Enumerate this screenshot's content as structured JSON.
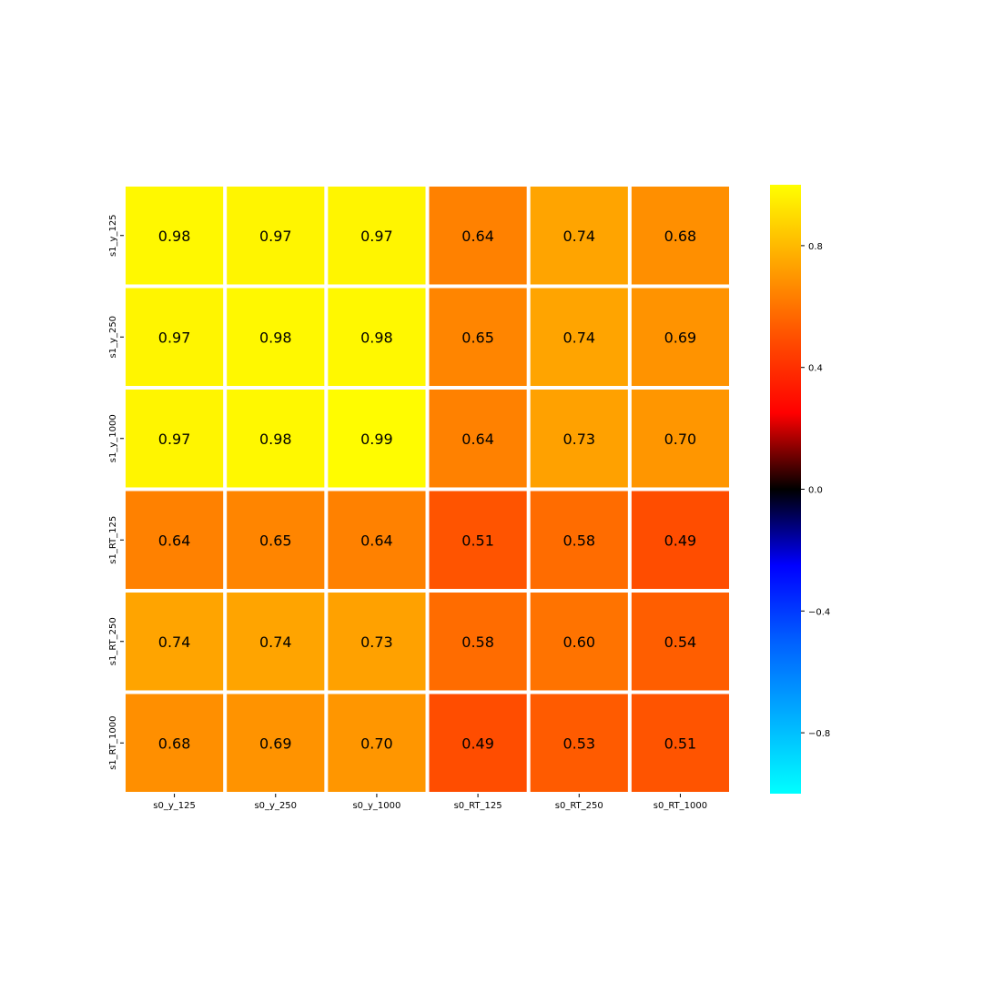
{
  "chart_data": {
    "type": "heatmap",
    "title": "",
    "xlabel": "",
    "ylabel": "",
    "x_categories": [
      "s0_y_125",
      "s0_y_250",
      "s0_y_1000",
      "s0_RT_125",
      "s0_RT_250",
      "s0_RT_1000"
    ],
    "y_categories": [
      "s1_y_125",
      "s1_y_250",
      "s1_y_1000",
      "s1_RT_125",
      "s1_RT_250",
      "s1_RT_1000"
    ],
    "values": [
      [
        0.98,
        0.97,
        0.97,
        0.64,
        0.74,
        0.68
      ],
      [
        0.97,
        0.98,
        0.98,
        0.65,
        0.74,
        0.69
      ],
      [
        0.97,
        0.98,
        0.99,
        0.64,
        0.73,
        0.7
      ],
      [
        0.64,
        0.65,
        0.64,
        0.51,
        0.58,
        0.49
      ],
      [
        0.74,
        0.74,
        0.73,
        0.58,
        0.6,
        0.54
      ],
      [
        0.68,
        0.69,
        0.7,
        0.49,
        0.53,
        0.51
      ]
    ],
    "value_format": "0.00",
    "annotations": true,
    "colorbar": {
      "range": [
        -1,
        1
      ],
      "ticks": [
        0.8,
        0.4,
        0.0,
        -0.4,
        -0.8
      ],
      "tick_labels": [
        "0.8",
        "0.4",
        "0.0",
        "−0.4",
        "−0.8"
      ],
      "colors": {
        "stops": [
          {
            "value": -1.0,
            "color": "#00ffff"
          },
          {
            "value": -0.5,
            "color": "#0060ff"
          },
          {
            "value": -0.25,
            "color": "#0000ff"
          },
          {
            "value": 0.0,
            "color": "#000000"
          },
          {
            "value": 0.25,
            "color": "#ff0000"
          },
          {
            "value": 0.5,
            "color": "#ff5000"
          },
          {
            "value": 0.75,
            "color": "#ffa800"
          },
          {
            "value": 1.0,
            "color": "#ffff00"
          }
        ]
      }
    },
    "grid": false,
    "cell_separator_color": "#ffffff"
  }
}
